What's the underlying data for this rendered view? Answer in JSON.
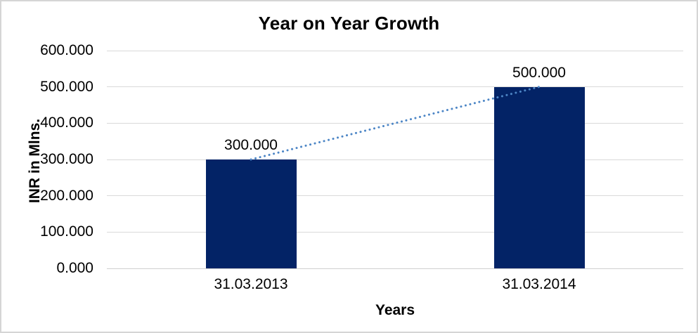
{
  "frame": {
    "background": "#ffffff",
    "border_color": "#d5d5d5"
  },
  "chart_data": {
    "type": "bar",
    "title": "Year on Year Growth",
    "xlabel": "Years",
    "ylabel": "INR in Mlns.",
    "categories": [
      "31.03.2013",
      "31.03.2014"
    ],
    "series": [
      {
        "name": "INR in Mlns.",
        "values": [
          300,
          500
        ]
      }
    ],
    "data_labels": [
      "300.000",
      "500.000"
    ],
    "ylim": [
      0,
      600
    ],
    "ytick_step": 100,
    "ytick_labels": [
      "0.000",
      "100.000",
      "200.000",
      "300.000",
      "400.000",
      "500.000",
      "600.000"
    ],
    "grid": true,
    "legend": "none",
    "bar_color": "#032366",
    "gridline_color": "#d9d9d9",
    "axis_line_color": "#cfcfcf",
    "text_color": "#000000",
    "trendline": {
      "style": "dotted",
      "color": "#4d86c6",
      "connects_bar_tops": [
        "31.03.2013",
        "31.03.2014"
      ]
    }
  }
}
